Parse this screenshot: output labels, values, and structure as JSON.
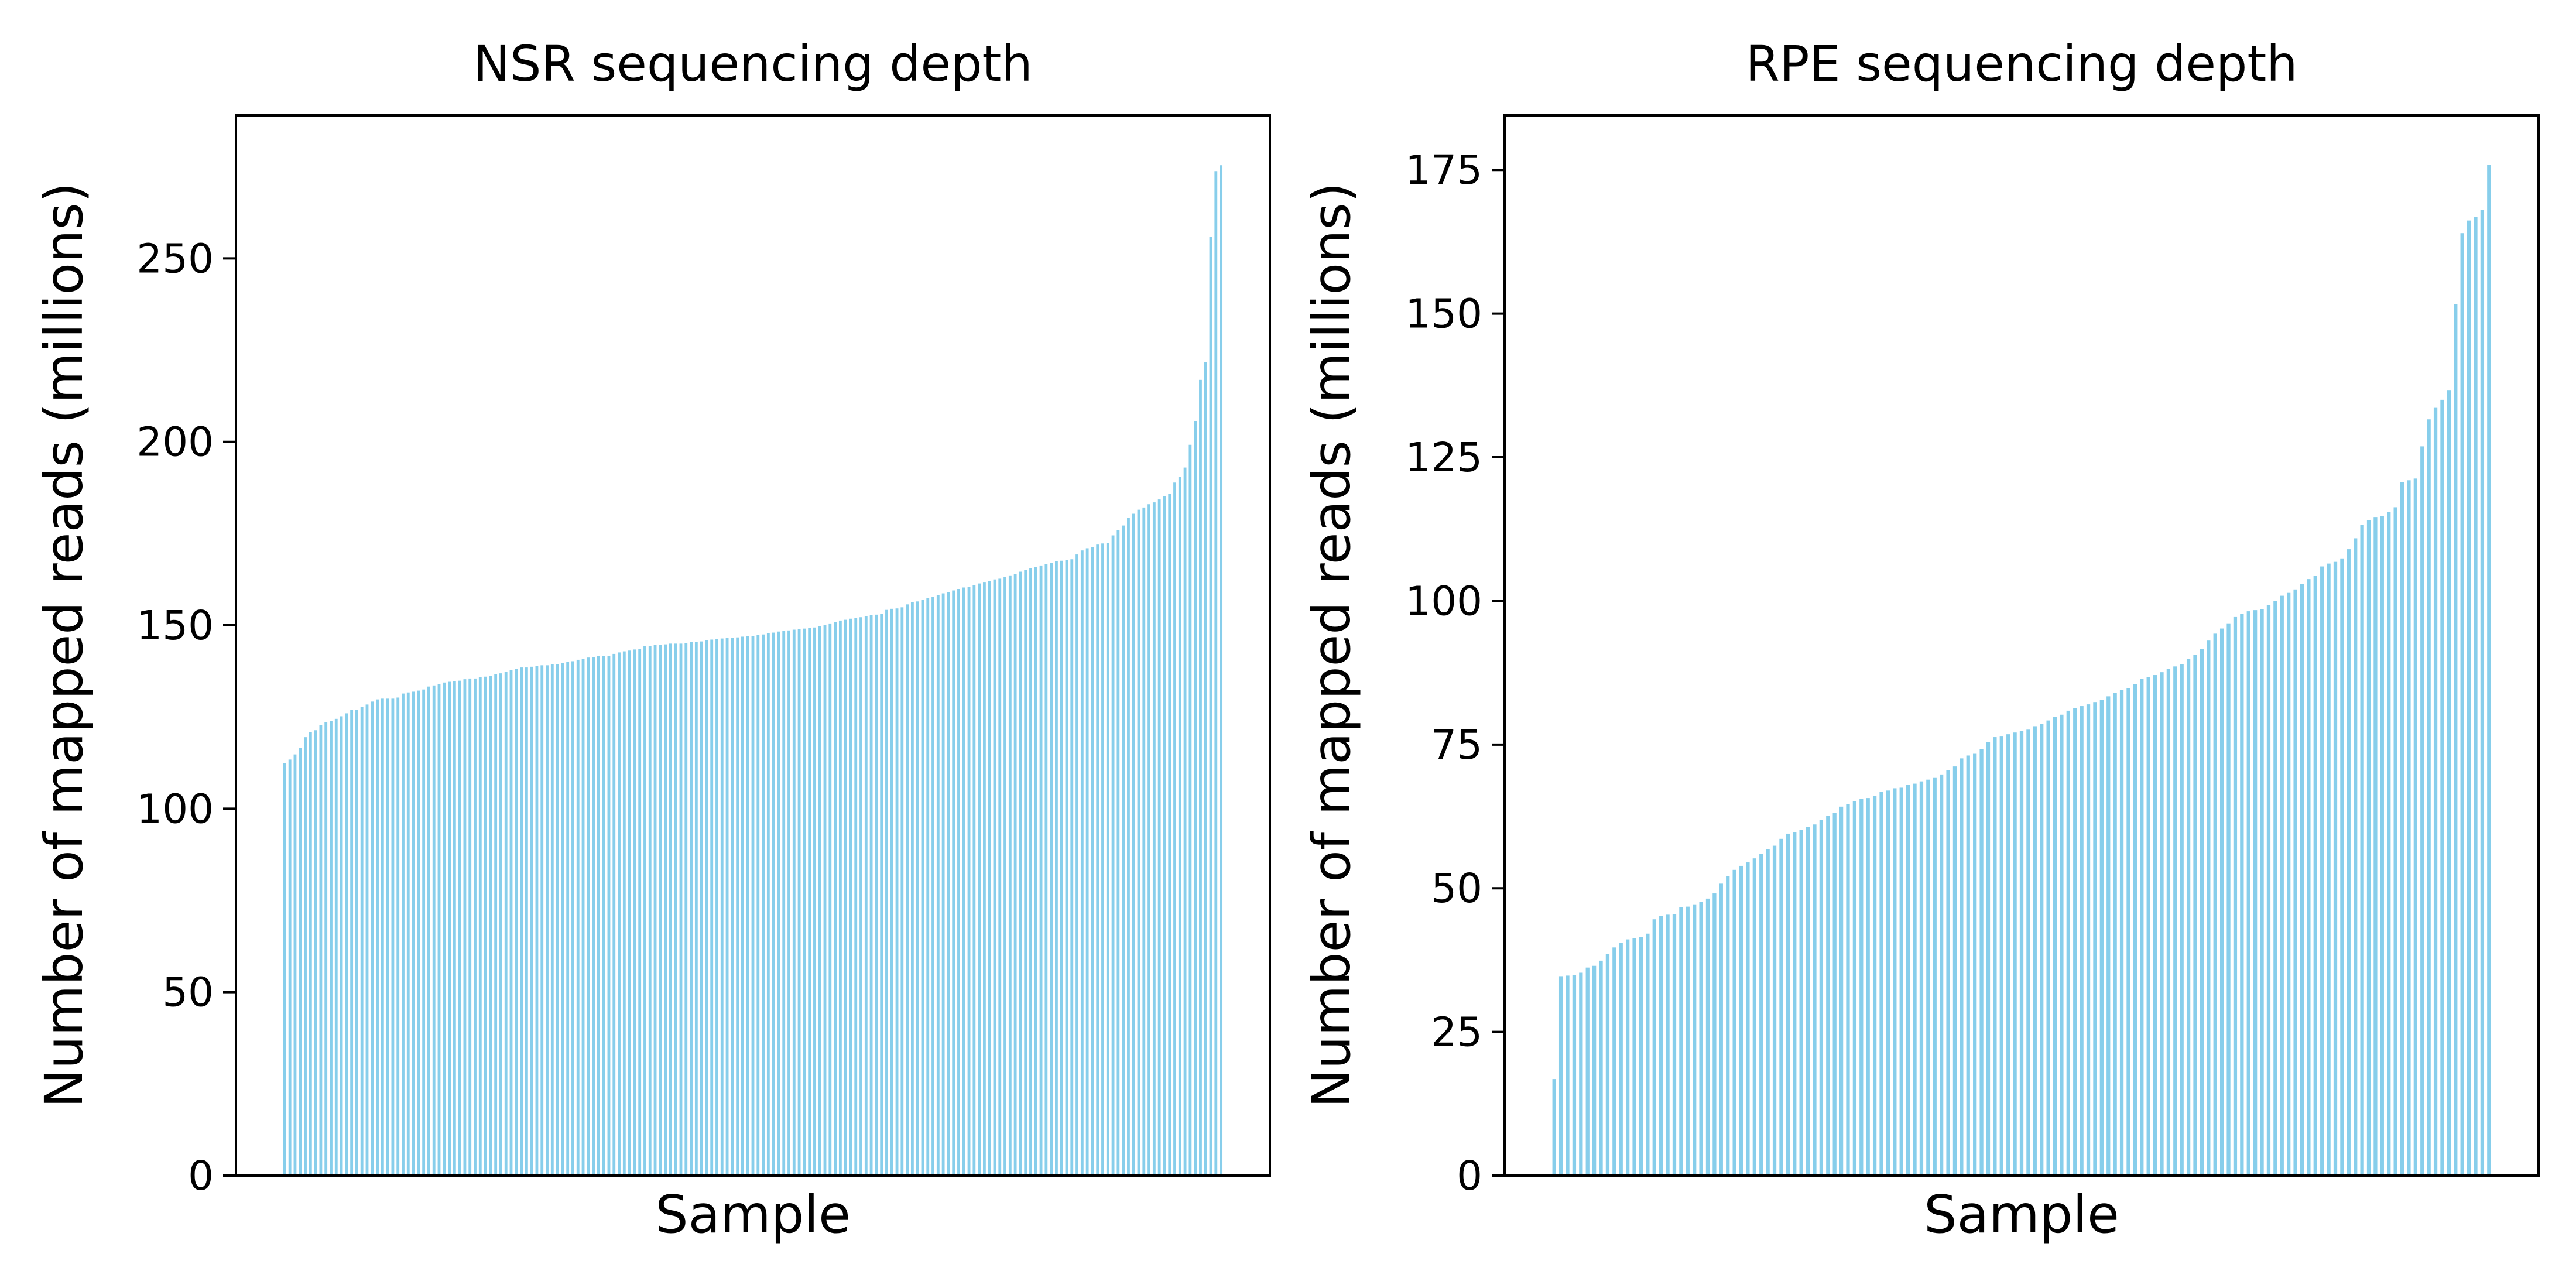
{
  "chart_data": [
    {
      "type": "bar",
      "title": "NSR sequencing depth",
      "xlabel": "Sample",
      "ylabel": "Number of mapped reads (millions)",
      "ylim": [
        0,
        289
      ],
      "yticks": [
        0,
        50,
        100,
        150,
        200,
        250
      ],
      "grid": false,
      "legend": "none",
      "color": "#87CEEB",
      "values": [
        112.5,
        113.4,
        114.8,
        116.6,
        119.5,
        120.8,
        121.4,
        122.8,
        123.6,
        123.9,
        124.5,
        125.2,
        126.0,
        126.9,
        127.0,
        127.8,
        128.4,
        129.2,
        129.8,
        130.0,
        130.0,
        130.0,
        130.3,
        131.4,
        131.7,
        131.9,
        132.2,
        132.5,
        133.3,
        133.6,
        133.9,
        134.4,
        134.6,
        134.7,
        134.9,
        135.3,
        135.5,
        135.5,
        135.8,
        136.0,
        136.2,
        136.6,
        136.9,
        137.3,
        137.8,
        138.1,
        138.5,
        138.5,
        138.7,
        138.9,
        139.1,
        139.1,
        139.4,
        139.4,
        139.7,
        140.0,
        140.2,
        140.6,
        140.9,
        141.2,
        141.3,
        141.6,
        141.6,
        141.7,
        142.2,
        142.6,
        142.9,
        143.1,
        143.4,
        143.6,
        144.3,
        144.4,
        144.6,
        144.6,
        144.8,
        145.0,
        145.0,
        145.0,
        145.1,
        145.4,
        145.5,
        145.6,
        145.9,
        146.1,
        146.2,
        146.4,
        146.5,
        146.6,
        146.7,
        146.9,
        147.1,
        147.1,
        147.3,
        147.5,
        147.8,
        148.0,
        148.3,
        148.5,
        148.6,
        148.8,
        149.0,
        149.1,
        149.3,
        149.4,
        149.7,
        150.0,
        150.5,
        150.9,
        151.3,
        151.5,
        151.8,
        152.0,
        152.2,
        152.5,
        152.8,
        152.9,
        153.1,
        154.2,
        154.5,
        154.6,
        154.9,
        155.7,
        156.3,
        156.5,
        157.0,
        157.5,
        157.8,
        158.2,
        158.7,
        159.1,
        159.5,
        159.9,
        160.3,
        160.5,
        161.0,
        161.4,
        161.8,
        162.0,
        162.5,
        162.7,
        163.1,
        163.6,
        164.0,
        164.6,
        165.1,
        165.5,
        165.9,
        166.3,
        166.7,
        167.0,
        167.4,
        167.6,
        167.8,
        168.0,
        169.3,
        170.4,
        171.0,
        171.3,
        172.0,
        172.3,
        172.5,
        174.5,
        175.9,
        177.2,
        179.3,
        180.4,
        181.5,
        182.1,
        183.0,
        183.5,
        184.3,
        185.2,
        185.8,
        188.9,
        190.4,
        193.0,
        199.2,
        205.7,
        216.9,
        221.7,
        255.9,
        273.8,
        275.4
      ]
    },
    {
      "type": "bar",
      "title": "RPE sequencing depth",
      "xlabel": "Sample",
      "ylabel": "Number of mapped reads (millions)",
      "ylim": [
        0,
        184.5
      ],
      "yticks": [
        0,
        25,
        50,
        75,
        100,
        125,
        150,
        175
      ],
      "grid": false,
      "legend": "none",
      "color": "#87CEEB",
      "values": [
        16.8,
        34.7,
        34.8,
        34.9,
        35.3,
        36.2,
        36.5,
        37.4,
        38.6,
        39.7,
        40.5,
        41.1,
        41.3,
        41.5,
        42.1,
        44.6,
        45.2,
        45.4,
        45.5,
        46.7,
        46.8,
        47.2,
        47.6,
        48.2,
        49.1,
        50.8,
        52.1,
        53.2,
        53.9,
        54.5,
        55.2,
        56.0,
        56.8,
        57.4,
        58.6,
        59.5,
        59.8,
        60.2,
        60.7,
        61.1,
        61.9,
        62.6,
        63.1,
        64.2,
        64.6,
        65.2,
        65.6,
        65.7,
        66.1,
        66.8,
        67.0,
        67.4,
        67.5,
        68.0,
        68.2,
        68.6,
        68.9,
        69.2,
        69.8,
        70.5,
        71.2,
        72.6,
        73.1,
        73.4,
        74.2,
        75.4,
        76.3,
        76.5,
        76.8,
        77.1,
        77.4,
        77.6,
        78.2,
        78.6,
        79.2,
        79.8,
        80.2,
        80.9,
        81.4,
        81.7,
        82.0,
        82.4,
        82.8,
        83.4,
        84.0,
        84.5,
        84.8,
        85.5,
        86.4,
        86.8,
        87.1,
        87.6,
        88.2,
        88.6,
        89.0,
        89.9,
        90.6,
        91.6,
        93.1,
        94.3,
        95.2,
        96.1,
        97.2,
        97.8,
        98.2,
        98.4,
        98.6,
        99.3,
        100.0,
        100.9,
        101.4,
        102.0,
        102.9,
        103.8,
        104.4,
        106.0,
        106.5,
        106.8,
        107.4,
        109.0,
        110.9,
        113.2,
        114.1,
        114.6,
        114.8,
        115.5,
        116.3,
        120.7,
        121.0,
        121.3,
        126.9,
        131.6,
        133.6,
        135.0,
        136.6,
        151.6,
        164.0,
        166.2,
        166.8,
        168.0,
        175.9
      ]
    }
  ]
}
